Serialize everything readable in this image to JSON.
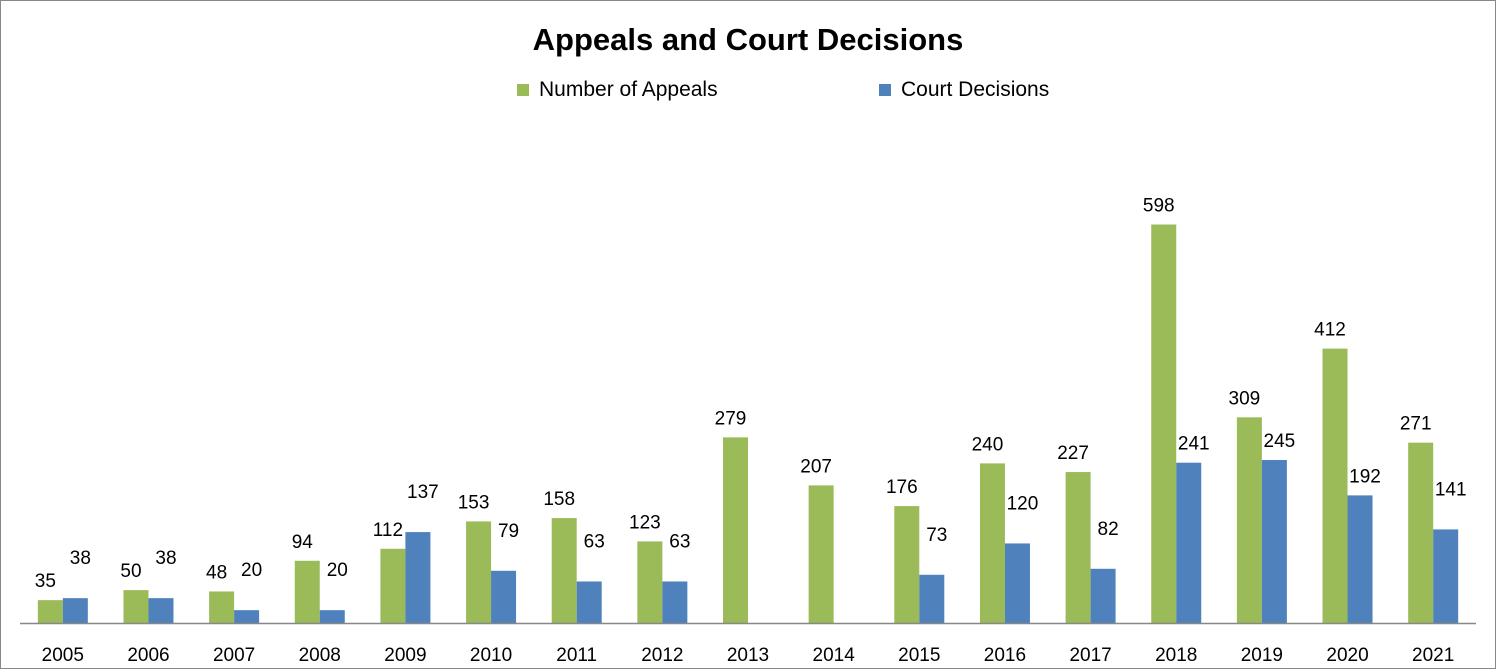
{
  "chart_data": {
    "type": "bar",
    "title": "Appeals and Court Decisions",
    "xlabel": "",
    "ylabel": "",
    "ylim": [
      0,
      700
    ],
    "grid": false,
    "legend_position": "top",
    "categories": [
      "2005",
      "2006",
      "2007",
      "2008",
      "2009",
      "2010",
      "2011",
      "2012",
      "2013",
      "2014",
      "2015",
      "2016",
      "2017",
      "2018",
      "2019",
      "2020",
      "2021"
    ],
    "series": [
      {
        "name": "Number of Appeals",
        "color": "#9BBB59",
        "values": [
          35,
          50,
          48,
          94,
          112,
          153,
          158,
          123,
          279,
          207,
          176,
          240,
          227,
          598,
          309,
          412,
          271
        ]
      },
      {
        "name": "Court Decisions",
        "color": "#4F81BD",
        "values": [
          38,
          38,
          20,
          20,
          137,
          79,
          63,
          63,
          null,
          null,
          73,
          120,
          82,
          241,
          245,
          192,
          141
        ]
      }
    ]
  }
}
